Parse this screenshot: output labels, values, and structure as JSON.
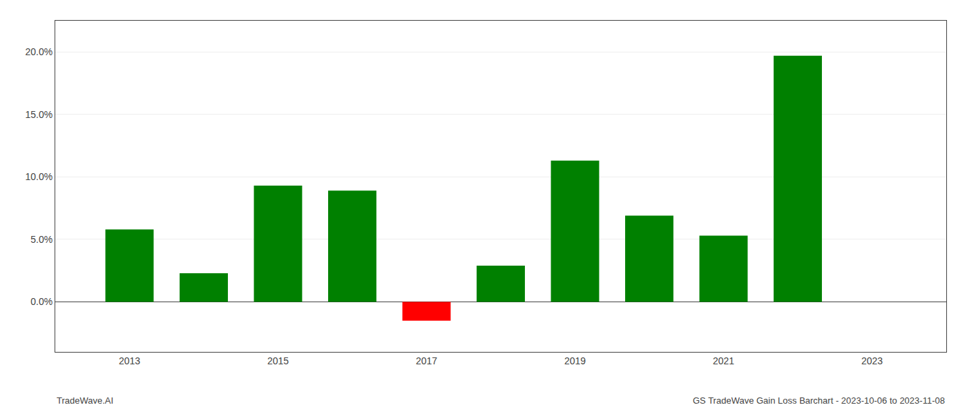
{
  "chart_data": {
    "type": "bar",
    "x": [
      2013,
      2014,
      2015,
      2016,
      2017,
      2018,
      2019,
      2020,
      2021,
      2022,
      2023
    ],
    "values": [
      0.058,
      0.023,
      0.093,
      0.089,
      -0.015,
      0.029,
      0.113,
      0.069,
      0.053,
      0.197,
      0.0
    ],
    "colors": [
      "#008000",
      "#008000",
      "#008000",
      "#008000",
      "#ff0000",
      "#008000",
      "#008000",
      "#008000",
      "#008000",
      "#008000",
      "#008000"
    ],
    "xlim": [
      2012,
      2024
    ],
    "xticks": [
      2013,
      2015,
      2017,
      2019,
      2021,
      2023
    ],
    "ylim": [
      -0.04,
      0.225
    ],
    "yticks": [
      {
        "value": 0,
        "label": "0.0%"
      },
      {
        "value": 0.05,
        "label": "5.0%"
      },
      {
        "value": 0.1,
        "label": "10.0%"
      },
      {
        "value": 0.15,
        "label": "15.0%"
      },
      {
        "value": 0.2,
        "label": "20.0%"
      }
    ],
    "grid": true,
    "annotations": [
      "TradeWave.AI",
      "GS TradeWave Gain Loss Barchart - 2023-10-06 to 2023-11-08"
    ]
  }
}
